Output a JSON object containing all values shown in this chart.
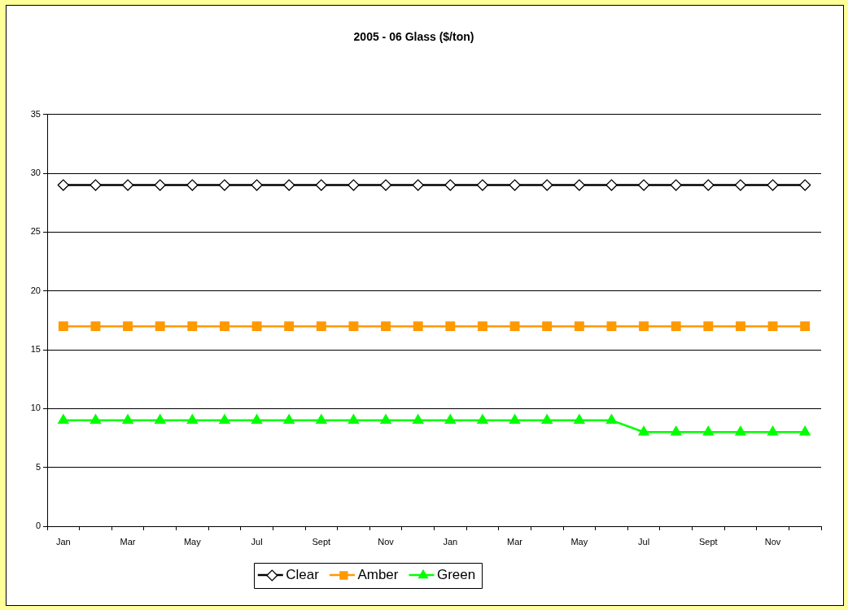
{
  "chart_data": {
    "type": "line",
    "title": "2005 - 06 Glass ($/ton)",
    "categories": [
      "Jan",
      null,
      "Mar",
      null,
      "May",
      null,
      "Jul",
      null,
      "Sept",
      null,
      "Nov",
      null,
      "Jan",
      null,
      "Mar",
      null,
      "May",
      null,
      "Jul",
      null,
      "Sept",
      null,
      "Nov",
      null
    ],
    "series": [
      {
        "name": "Clear",
        "color": "#000000",
        "marker": "diamond",
        "values": [
          29,
          29,
          29,
          29,
          29,
          29,
          29,
          29,
          29,
          29,
          29,
          29,
          29,
          29,
          29,
          29,
          29,
          29,
          29,
          29,
          29,
          29,
          29,
          29
        ]
      },
      {
        "name": "Amber",
        "color": "#ff9900",
        "marker": "square",
        "values": [
          17,
          17,
          17,
          17,
          17,
          17,
          17,
          17,
          17,
          17,
          17,
          17,
          17,
          17,
          17,
          17,
          17,
          17,
          17,
          17,
          17,
          17,
          17,
          17
        ]
      },
      {
        "name": "Green",
        "color": "#00ff00",
        "marker": "triangle",
        "values": [
          9,
          9,
          9,
          9,
          9,
          9,
          9,
          9,
          9,
          9,
          9,
          9,
          9,
          9,
          9,
          9,
          9,
          9,
          8,
          8,
          8,
          8,
          8,
          8
        ]
      }
    ],
    "ylim": [
      0,
      35
    ],
    "yticks": [
      0,
      5,
      10,
      15,
      20,
      25,
      30,
      35
    ],
    "grid": "y",
    "legend": "bottom"
  }
}
